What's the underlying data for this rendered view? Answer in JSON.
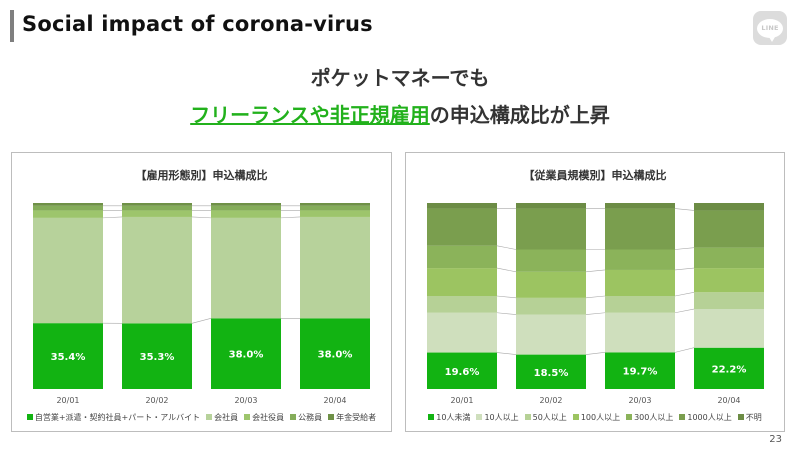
{
  "slide": {
    "title": "Social impact of corona-virus",
    "logo_text": "LINE",
    "headline_line1": "ポケットマネーでも",
    "headline_line2_highlight": "フリーランスや非正規雇用",
    "headline_line2_rest": "の申込構成比が上昇",
    "page_number": "23"
  },
  "chart_data": [
    {
      "type": "bar",
      "stacked": true,
      "normalized": true,
      "title": "【雇用形態別】申込構成比",
      "categories": [
        "20/01",
        "20/02",
        "20/03",
        "20/04"
      ],
      "ylim": [
        0,
        100
      ],
      "series": [
        {
          "name": "自営業+派遣・契約社員+パート・アルバイト",
          "color": "#12b312",
          "values": [
            35.4,
            35.3,
            38.0,
            38.0
          ],
          "labels": [
            "35.4%",
            "35.3%",
            "38.0%",
            "38.0%"
          ]
        },
        {
          "name": "会社員",
          "color": "#b7d29b",
          "values": [
            56.6,
            57.2,
            54.0,
            54.5
          ]
        },
        {
          "name": "会社役員",
          "color": "#9dc56c",
          "values": [
            4.0,
            3.5,
            4.0,
            3.5
          ]
        },
        {
          "name": "公務員",
          "color": "#85ad5a",
          "values": [
            2.5,
            2.5,
            2.5,
            2.5
          ]
        },
        {
          "name": "年金受給者",
          "color": "#6f9147",
          "values": [
            1.5,
            1.5,
            1.5,
            1.5
          ]
        }
      ]
    },
    {
      "type": "bar",
      "stacked": true,
      "normalized": true,
      "title": "【従業員規模別】申込構成比",
      "categories": [
        "20/01",
        "20/02",
        "20/03",
        "20/04"
      ],
      "ylim": [
        0,
        100
      ],
      "series": [
        {
          "name": "10人未満",
          "color": "#12b312",
          "values": [
            19.6,
            18.5,
            19.7,
            22.2
          ],
          "labels": [
            "19.6%",
            "18.5%",
            "19.7%",
            "22.2%"
          ]
        },
        {
          "name": "10人以上",
          "color": "#cfdfbd",
          "values": [
            21.4,
            21.5,
            21.3,
            20.8
          ]
        },
        {
          "name": "50人以上",
          "color": "#b6d196",
          "values": [
            9.0,
            9.0,
            9.0,
            9.0
          ]
        },
        {
          "name": "100人以上",
          "color": "#9cc461",
          "values": [
            15.0,
            14.0,
            14.0,
            13.0
          ]
        },
        {
          "name": "300人以上",
          "color": "#8bb35a",
          "values": [
            12.0,
            12.0,
            11.0,
            11.0
          ]
        },
        {
          "name": "1000人以上",
          "color": "#7a9e4e",
          "values": [
            20.0,
            22.0,
            22.0,
            20.0
          ]
        },
        {
          "name": "不明",
          "color": "#6c8c45",
          "values": [
            3.0,
            3.0,
            3.0,
            4.0
          ]
        }
      ]
    }
  ]
}
